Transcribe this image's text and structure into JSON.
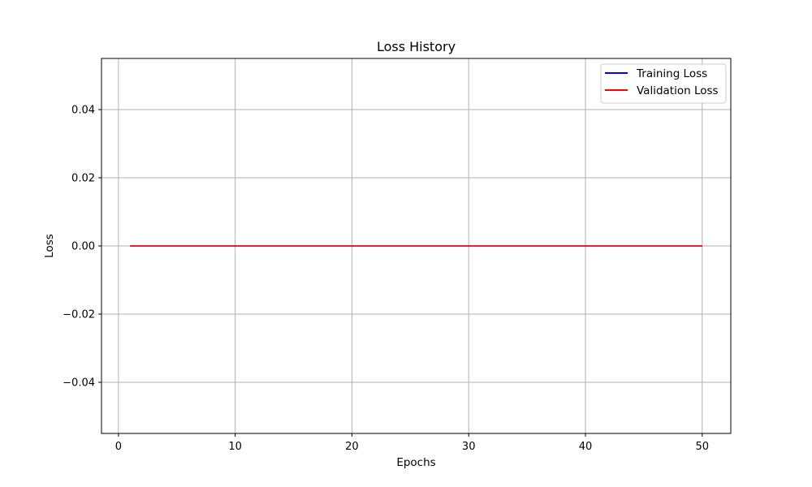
{
  "chart_data": {
    "type": "line",
    "title": "Loss History",
    "xlabel": "Epochs",
    "ylabel": "Loss",
    "xlim": [
      -1.45,
      52.45
    ],
    "ylim": [
      -0.055,
      0.055
    ],
    "xticks": [
      0,
      10,
      20,
      30,
      40,
      50
    ],
    "xtick_labels": [
      "0",
      "10",
      "20",
      "30",
      "40",
      "50"
    ],
    "yticks": [
      -0.04,
      -0.02,
      0.0,
      0.02,
      0.04
    ],
    "ytick_labels": [
      "−0.04",
      "−0.02",
      "0.00",
      "0.02",
      "0.04"
    ],
    "grid": true,
    "legend_position": "top-right",
    "x": [
      1,
      2,
      3,
      4,
      5,
      6,
      7,
      8,
      9,
      10,
      11,
      12,
      13,
      14,
      15,
      16,
      17,
      18,
      19,
      20,
      21,
      22,
      23,
      24,
      25,
      26,
      27,
      28,
      29,
      30,
      31,
      32,
      33,
      34,
      35,
      36,
      37,
      38,
      39,
      40,
      41,
      42,
      43,
      44,
      45,
      46,
      47,
      48,
      49,
      50
    ],
    "series": [
      {
        "name": "Training Loss",
        "color": "#0000ff",
        "values": [
          0,
          0,
          0,
          0,
          0,
          0,
          0,
          0,
          0,
          0,
          0,
          0,
          0,
          0,
          0,
          0,
          0,
          0,
          0,
          0,
          0,
          0,
          0,
          0,
          0,
          0,
          0,
          0,
          0,
          0,
          0,
          0,
          0,
          0,
          0,
          0,
          0,
          0,
          0,
          0,
          0,
          0,
          0,
          0,
          0,
          0,
          0,
          0,
          0,
          0
        ]
      },
      {
        "name": "Validation Loss",
        "color": "#ff0000",
        "values": [
          0,
          0,
          0,
          0,
          0,
          0,
          0,
          0,
          0,
          0,
          0,
          0,
          0,
          0,
          0,
          0,
          0,
          0,
          0,
          0,
          0,
          0,
          0,
          0,
          0,
          0,
          0,
          0,
          0,
          0,
          0,
          0,
          0,
          0,
          0,
          0,
          0,
          0,
          0,
          0,
          0,
          0,
          0,
          0,
          0,
          0,
          0,
          0,
          0,
          0
        ]
      }
    ]
  }
}
